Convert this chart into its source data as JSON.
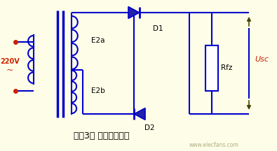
{
  "bg_color": "#fefee8",
  "line_color": "#0000cc",
  "text_black": "#000000",
  "text_red": "#cc2200",
  "text_olive": "#666600",
  "label_220V": "220V",
  "label_tilde": "~",
  "label_E2a": "E2a",
  "label_E2b": "E2b",
  "label_D1": "D1",
  "label_D2": "D2",
  "label_Rfz": "Rfz",
  "label_Usc": "Usc",
  "label_figure": "图（3） 全波整流电路",
  "watermark": "www.elecfans.com",
  "figsize": [
    3.95,
    2.16
  ],
  "dpi": 100,
  "lw": 1.5
}
